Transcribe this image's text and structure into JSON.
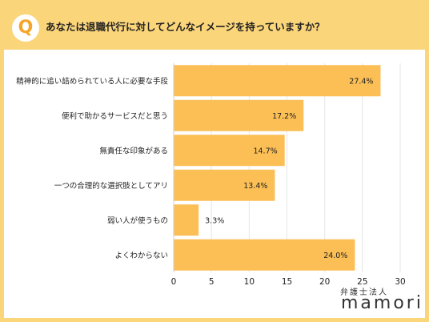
{
  "header": {
    "badge": "Q",
    "question": "あなたは退職代行に対してどんなイメージを持っていますか？"
  },
  "logo": {
    "subtitle": "弁護士法人",
    "name": "mamori"
  },
  "colors": {
    "bar": "#fbbf55",
    "header_bg": "#fbd57a",
    "badge_text": "#f4a62a",
    "grid": "#e6e6e6"
  },
  "chart_data": {
    "type": "bar",
    "orientation": "horizontal",
    "categories": [
      "精神的に追い詰められている人に必要な手段",
      "便利で助かるサービスだと思う",
      "無責任な印象がある",
      "一つの合理的な選択肢としてアリ",
      "弱い人が使うもの",
      "よくわからない"
    ],
    "values": [
      27.4,
      17.2,
      14.7,
      13.4,
      3.3,
      24.0
    ],
    "data_labels": [
      "27.4%",
      "17.2%",
      "14.7%",
      "13.4%",
      "3.3%",
      "24.0%"
    ],
    "xlim": [
      0,
      30
    ],
    "xticks": [
      0,
      5,
      10,
      15,
      20,
      25,
      30
    ],
    "grid": true
  }
}
